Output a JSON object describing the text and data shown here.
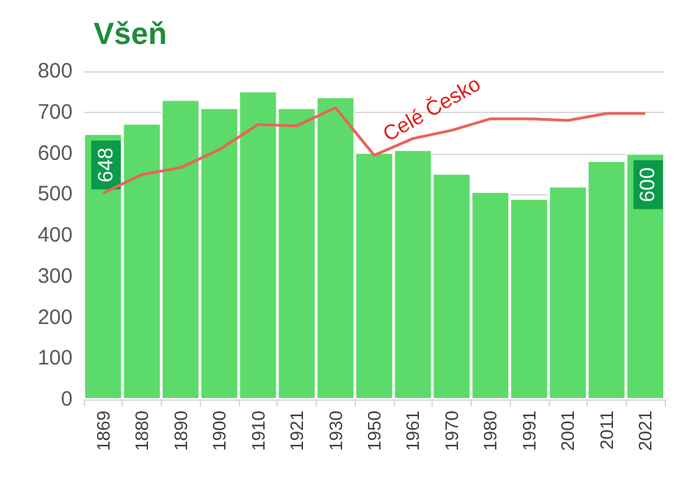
{
  "chart_data": {
    "type": "bar",
    "title": "Všeň",
    "categories": [
      "1869",
      "1880",
      "1890",
      "1900",
      "1910",
      "1921",
      "1930",
      "1950",
      "1961",
      "1970",
      "1980",
      "1991",
      "2001",
      "2011",
      "2021"
    ],
    "series": [
      {
        "color": "#5cdb6a",
        "values": [
          648,
          673,
          731,
          711,
          752,
          711,
          738,
          602,
          609,
          551,
          507,
          490,
          520,
          582,
          600
        ],
        "value_labels": [
          "648",
          null,
          null,
          null,
          null,
          null,
          null,
          null,
          null,
          null,
          null,
          null,
          null,
          null,
          "600"
        ]
      },
      {
        "type": "line",
        "name": "Celé Česko",
        "color": "#e8645a",
        "values": [
          503,
          548,
          565,
          609,
          670,
          667,
          711,
          595,
          636,
          656,
          684,
          684,
          680,
          697,
          697
        ]
      }
    ],
    "ylim": [
      0,
      800
    ],
    "yticks": [
      0,
      100,
      200,
      300,
      400,
      500,
      600,
      700,
      800
    ],
    "grid": "y",
    "legend": false,
    "marker": "none"
  }
}
